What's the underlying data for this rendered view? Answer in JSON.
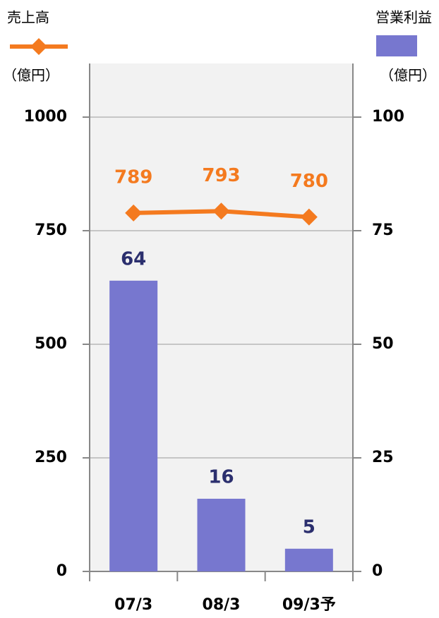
{
  "chart_data": {
    "type": "bar",
    "categories": [
      "07/3",
      "08/3",
      "09/3予"
    ],
    "series": [
      {
        "name": "売上高",
        "type": "line",
        "color": "#f47a1f",
        "values": [
          789,
          793,
          780
        ],
        "axis": "y"
      },
      {
        "name": "営業利益",
        "type": "bar",
        "color": "#7777cf",
        "values": [
          64,
          16,
          5
        ],
        "axis": "y2"
      }
    ],
    "y_label": "（億円）",
    "y2_label": "（億円）",
    "ylim": [
      0,
      1000
    ],
    "yticks": [
      0,
      250,
      500,
      750,
      1000
    ],
    "y2lim": [
      0,
      100
    ],
    "y2ticks": [
      0,
      25,
      50,
      75,
      100
    ],
    "grid": true
  }
}
